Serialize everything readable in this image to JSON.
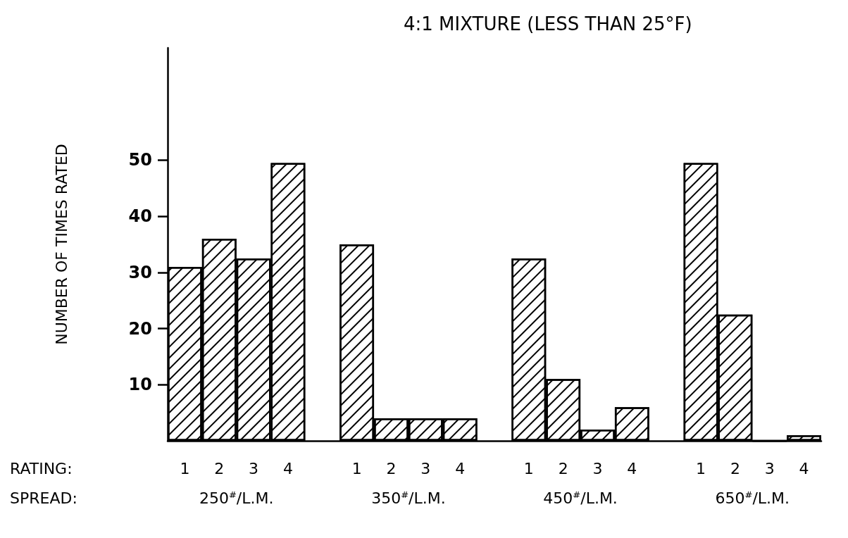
{
  "chart_data": {
    "type": "bar",
    "title": "4:1 MIXTURE (LESS THAN 25°F)",
    "ylabel": "NUMBER OF TIMES RATED",
    "categories": [
      "1",
      "2",
      "3",
      "4",
      null,
      "1",
      "2",
      "3",
      "4",
      null,
      "1",
      "2",
      "3",
      "4",
      null,
      "1",
      "2",
      "3",
      "4"
    ],
    "values": [
      31,
      36,
      32.5,
      49.5,
      null,
      35,
      4,
      4,
      4,
      null,
      32.5,
      11,
      2,
      6,
      null,
      49.5,
      22.5,
      0,
      1
    ],
    "color": "#000000",
    "ylim": [
      0,
      70
    ],
    "yticks": [
      10,
      20,
      30,
      40,
      50
    ],
    "grid": false,
    "annotations": [
      "RATING:",
      "SPREAD:",
      "250$^{#}$/L.M.",
      "350$^{#}$/L.M.",
      "450$^{#}$/L.M.",
      "650$^{#}$/L.M."
    ]
  }
}
